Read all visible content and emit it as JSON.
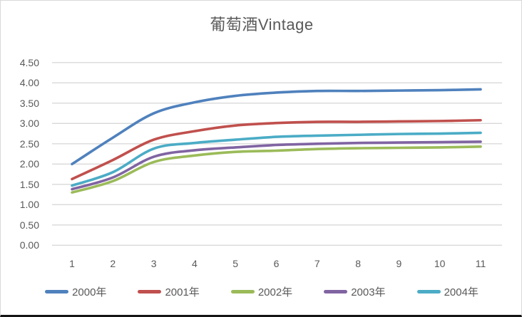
{
  "chart_data": {
    "type": "line",
    "title": "葡萄酒Vintage",
    "xlabel": "",
    "ylabel": "",
    "categories": [
      "1",
      "2",
      "3",
      "4",
      "5",
      "6",
      "7",
      "8",
      "9",
      "10",
      "11"
    ],
    "series": [
      {
        "name": "2000年",
        "color": "#4F81BD",
        "values": [
          2.0,
          2.65,
          3.25,
          3.52,
          3.68,
          3.76,
          3.8,
          3.8,
          3.81,
          3.82,
          3.84
        ]
      },
      {
        "name": "2001年",
        "color": "#C0504D",
        "values": [
          1.63,
          2.1,
          2.6,
          2.81,
          2.95,
          3.01,
          3.04,
          3.04,
          3.05,
          3.06,
          3.08
        ]
      },
      {
        "name": "2002年",
        "color": "#9BBB59",
        "values": [
          1.3,
          1.58,
          2.05,
          2.21,
          2.3,
          2.33,
          2.37,
          2.39,
          2.4,
          2.41,
          2.43
        ]
      },
      {
        "name": "2003年",
        "color": "#8064A2",
        "values": [
          1.38,
          1.67,
          2.18,
          2.34,
          2.41,
          2.47,
          2.5,
          2.52,
          2.53,
          2.54,
          2.55
        ]
      },
      {
        "name": "2004年",
        "color": "#4BACC6",
        "values": [
          1.47,
          1.8,
          2.38,
          2.52,
          2.6,
          2.67,
          2.7,
          2.72,
          2.74,
          2.75,
          2.77
        ]
      }
    ],
    "ylim": [
      0.0,
      4.5
    ],
    "ytick_labels": [
      "4.50",
      "4.00",
      "3.50",
      "3.00",
      "2.50",
      "2.00",
      "1.50",
      "1.00",
      "0.50",
      "0.00"
    ],
    "grid": "horizontal-only",
    "legend_position": "bottom",
    "colors": {
      "text": "#595959",
      "gridline": "#D9D9D9",
      "background": "#FFFFFF"
    }
  }
}
